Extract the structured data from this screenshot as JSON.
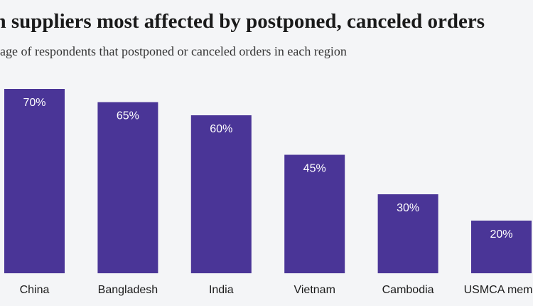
{
  "chart_data": {
    "type": "bar",
    "title": "an suppliers most affected by postponed, canceled orders",
    "subtitle": "ntage of respondents that postponed or canceled orders in each region",
    "categories": [
      "China",
      "Bangladesh",
      "India",
      "Vietnam",
      "Cambodia",
      "USMCA memb"
    ],
    "values": [
      70,
      65,
      60,
      45,
      30,
      20
    ],
    "value_labels": [
      "70%",
      "65%",
      "60%",
      "45%",
      "30%",
      "20%"
    ],
    "ylim": [
      0,
      70
    ],
    "bar_color": "#4a3597",
    "label_color": "#ffffff",
    "grid": false,
    "legend": "none"
  }
}
